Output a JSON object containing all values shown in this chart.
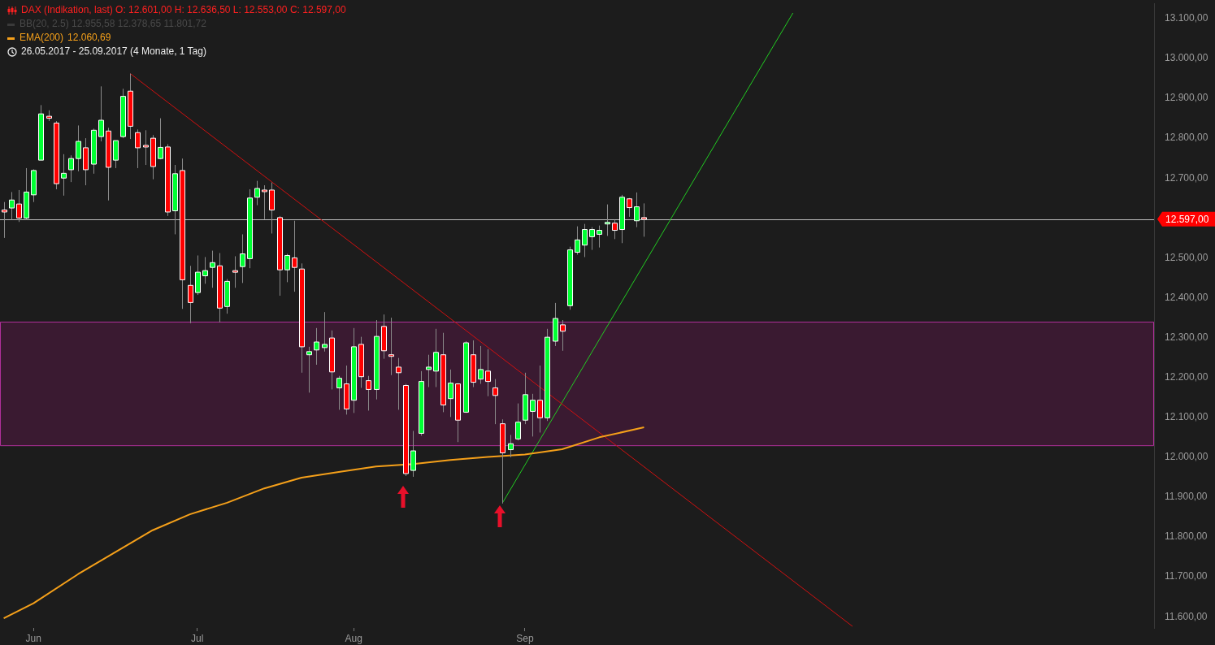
{
  "chart_data": {
    "type": "candlestick",
    "title": "DAX (Indikation, last)  O: 12.601,00  H: 12.636,50  L: 12.553,00  C: 12.597,00",
    "subtitle": "26.05.2017 - 25.09.2017   (4 Monate, 1 Tag)",
    "annotations": [
      "BB(20, 2.5)  12.955,58  12.378,65  11.801,72",
      "12.060,69"
    ],
    "categories": [
      null,
      null,
      null,
      null,
      "Jun",
      null,
      null,
      null,
      null,
      null,
      null,
      null,
      null,
      null,
      null,
      null,
      null,
      null,
      null,
      null,
      null,
      null,
      null,
      null,
      null,
      null,
      "Jul",
      null,
      null,
      null,
      null,
      null,
      null,
      null,
      null,
      null,
      null,
      null,
      null,
      null,
      null,
      null,
      null,
      null,
      null,
      null,
      null,
      "Aug",
      null,
      null,
      null,
      null,
      null,
      null,
      null,
      null,
      null,
      null,
      null,
      null,
      null,
      null,
      null,
      null,
      null,
      null,
      null,
      null,
      null,
      null,
      "Sep",
      null,
      null,
      null,
      null,
      null,
      null,
      null,
      null,
      null,
      null,
      null,
      null,
      null,
      null,
      null,
      null,
      null,
      null,
      null,
      null,
      null,
      null,
      null,
      null,
      null,
      null,
      null,
      null,
      null,
      null,
      null,
      null,
      null,
      null,
      null,
      null,
      null,
      null,
      null,
      null,
      null,
      null,
      null,
      null,
      null,
      null,
      null,
      null,
      null,
      null,
      null,
      null,
      null,
      null,
      null,
      null,
      null,
      null,
      null,
      null,
      null,
      null,
      null,
      null,
      null,
      null,
      null,
      null,
      null,
      null,
      null,
      null,
      null,
      null,
      null,
      null,
      null,
      null,
      null,
      null,
      null,
      null,
      null,
      null
    ],
    "ohlc": [
      [
        12620,
        12640,
        12550,
        12615
      ],
      [
        12625,
        12665,
        12595,
        12645
      ],
      [
        12635,
        12670,
        12590,
        12600
      ],
      [
        12600,
        12725,
        12595,
        12665
      ],
      [
        12658,
        12722,
        12640,
        12719
      ],
      [
        12745,
        12883,
        12745,
        12861
      ],
      [
        12855,
        12870,
        12843,
        12850
      ],
      [
        12838,
        12843,
        12672,
        12686
      ],
      [
        12700,
        12760,
        12656,
        12712
      ],
      [
        12721,
        12757,
        12690,
        12749
      ],
      [
        12749,
        12832,
        12717,
        12792
      ],
      [
        12776,
        12800,
        12682,
        12721
      ],
      [
        12735,
        12824,
        12711,
        12820
      ],
      [
        12804,
        12930,
        12792,
        12845
      ],
      [
        12818,
        12826,
        12644,
        12727
      ],
      [
        12745,
        12794,
        12725,
        12794
      ],
      [
        12804,
        12924,
        12800,
        12905
      ],
      [
        12918,
        12962,
        12798,
        12830
      ],
      [
        12814,
        12822,
        12725,
        12776
      ],
      [
        12782,
        12820,
        12733,
        12780
      ],
      [
        12800,
        12808,
        12697,
        12729
      ],
      [
        12749,
        12850,
        12747,
        12777
      ],
      [
        12778,
        12785,
        12605,
        12615
      ],
      [
        12618,
        12733,
        12559,
        12711
      ],
      [
        12719,
        12749,
        12372,
        12445
      ],
      [
        12431,
        12480,
        12336,
        12388
      ],
      [
        12413,
        12506,
        12407,
        12464
      ],
      [
        12455,
        12502,
        12435,
        12468
      ],
      [
        12476,
        12518,
        12425,
        12488
      ],
      [
        12480,
        12512,
        12338,
        12374
      ],
      [
        12378,
        12447,
        12360,
        12441
      ],
      [
        12468,
        12504,
        12425,
        12464
      ],
      [
        12478,
        12559,
        12437,
        12510
      ],
      [
        12498,
        12672,
        12474,
        12650
      ],
      [
        12652,
        12693,
        12632,
        12674
      ],
      [
        12670,
        12682,
        12597,
        12668
      ],
      [
        12670,
        12689,
        12561,
        12620
      ],
      [
        12601,
        12605,
        12405,
        12470
      ],
      [
        12470,
        12510,
        12439,
        12506
      ],
      [
        12500,
        12593,
        12415,
        12476
      ],
      [
        12472,
        12486,
        12212,
        12277
      ],
      [
        12257,
        12277,
        12162,
        12265
      ],
      [
        12269,
        12324,
        12232,
        12289
      ],
      [
        12275,
        12364,
        12265,
        12283
      ],
      [
        12299,
        12318,
        12170,
        12214
      ],
      [
        12174,
        12204,
        12119,
        12198
      ],
      [
        12184,
        12230,
        12107,
        12121
      ],
      [
        12143,
        12324,
        12111,
        12277
      ],
      [
        12283,
        12302,
        12174,
        12202
      ],
      [
        12192,
        12204,
        12117,
        12170
      ],
      [
        12170,
        12344,
        12145,
        12303
      ],
      [
        12328,
        12358,
        12247,
        12267
      ],
      [
        12257,
        12350,
        12206,
        12255
      ],
      [
        12226,
        12249,
        12119,
        12212
      ],
      [
        12180,
        12184,
        11953,
        11959
      ],
      [
        11967,
        12066,
        11951,
        12016
      ],
      [
        12060,
        12216,
        12054,
        12190
      ],
      [
        12220,
        12257,
        12176,
        12226
      ],
      [
        12216,
        12322,
        12176,
        12263
      ],
      [
        12257,
        12312,
        12113,
        12131
      ],
      [
        12147,
        12220,
        12101,
        12186
      ],
      [
        12184,
        12186,
        12038,
        12093
      ],
      [
        12113,
        12291,
        12111,
        12287
      ],
      [
        12257,
        12293,
        12176,
        12188
      ],
      [
        12196,
        12279,
        12184,
        12220
      ],
      [
        12216,
        12271,
        12153,
        12190
      ],
      [
        12174,
        12196,
        12083,
        12155
      ],
      [
        12084,
        12095,
        11884,
        12011
      ],
      [
        12019,
        12056,
        12000,
        12034
      ],
      [
        12046,
        12135,
        12042,
        12088
      ],
      [
        12093,
        12212,
        12083,
        12157
      ],
      [
        12115,
        12159,
        12052,
        12143
      ],
      [
        12143,
        12230,
        12062,
        12099
      ],
      [
        12099,
        12322,
        12091,
        12301
      ],
      [
        12291,
        12387,
        12279,
        12348
      ],
      [
        12332,
        12344,
        12267,
        12316
      ],
      [
        12380,
        12528,
        12370,
        12520
      ],
      [
        12514,
        12579,
        12508,
        12545
      ],
      [
        12532,
        12585,
        12502,
        12571
      ],
      [
        12553,
        12577,
        12520,
        12571
      ],
      [
        12559,
        12581,
        12526,
        12569
      ],
      [
        12587,
        12634,
        12555,
        12589
      ],
      [
        12587,
        12595,
        12547,
        12569
      ],
      [
        12571,
        12658,
        12537,
        12652
      ],
      [
        12648,
        12650,
        12603,
        12626
      ],
      [
        12593,
        12664,
        12577,
        12628
      ],
      [
        12601,
        12636.5,
        12553,
        12597
      ],
      null,
      null,
      null,
      null,
      null,
      null,
      null,
      null,
      null,
      null,
      null,
      null,
      null,
      null,
      null,
      null,
      null,
      null,
      null,
      null,
      null,
      null,
      null,
      null,
      null,
      null,
      null,
      null,
      null,
      null,
      null,
      null,
      null,
      null,
      null,
      null,
      null,
      null,
      null,
      null,
      null,
      null,
      null,
      null,
      null,
      null,
      null,
      null,
      null,
      null,
      null,
      null,
      null,
      null,
      null,
      null,
      null,
      null,
      null,
      null,
      null,
      null,
      null,
      null,
      null,
      null,
      null,
      null
    ],
    "series": [
      {
        "name": "EMA(200)",
        "type": "line",
        "color": "#f5a01a",
        "values": [
          11596,
          null,
          null,
          null,
          11634,
          null,
          null,
          null,
          null,
          null,
          11707,
          null,
          null,
          null,
          null,
          11762,
          null,
          null,
          null,
          null,
          11817,
          null,
          null,
          null,
          null,
          11857,
          null,
          null,
          null,
          null,
          11886,
          null,
          null,
          null,
          null,
          11922,
          null,
          null,
          null,
          null,
          11949,
          null,
          null,
          null,
          null,
          11963,
          null,
          null,
          null,
          null,
          11977,
          null,
          null,
          null,
          null,
          11983,
          null,
          null,
          null,
          null,
          11993,
          null,
          null,
          null,
          null,
          12001,
          null,
          null,
          null,
          null,
          12007,
          null,
          null,
          null,
          null,
          12020,
          null,
          null,
          null,
          null,
          12050,
          null,
          null,
          null,
          null,
          null,
          12075,
          null,
          null,
          null,
          null,
          null,
          null,
          null,
          null,
          null,
          null,
          null,
          null,
          null,
          null,
          null,
          null,
          null,
          null,
          null,
          null,
          null,
          null,
          null,
          null,
          null,
          null,
          null,
          null,
          null,
          null,
          null,
          null,
          null,
          null,
          null,
          null,
          null,
          null,
          null,
          null,
          null,
          null,
          null,
          null,
          null,
          null,
          null,
          null,
          null,
          null,
          null,
          null,
          null,
          null,
          null,
          null,
          null,
          null,
          null,
          null,
          null,
          null,
          null,
          null,
          null,
          null,
          null,
          null
        ]
      },
      {
        "type": "line",
        "color": "#d01010",
        "values": [
          null,
          null,
          null,
          null,
          null,
          null,
          null,
          null,
          null,
          null,
          null,
          null,
          null,
          null,
          null,
          null,
          null,
          12962,
          null,
          null,
          null,
          null,
          null,
          null,
          null,
          null,
          null,
          null,
          null,
          null,
          null,
          null,
          null,
          null,
          null,
          null,
          null,
          null,
          null,
          null,
          null,
          null,
          null,
          null,
          null,
          null,
          null,
          null,
          null,
          null,
          null,
          null,
          null,
          null,
          null,
          null,
          null,
          null,
          null,
          null,
          null,
          null,
          null,
          null,
          null,
          null,
          null,
          null,
          null,
          null,
          null,
          null,
          null,
          null,
          null,
          null,
          null,
          null,
          null,
          null,
          null,
          null,
          null,
          null,
          null,
          null,
          null,
          null,
          null,
          null,
          null,
          null,
          null,
          null,
          null,
          null,
          null,
          null,
          null,
          null,
          null,
          null,
          null,
          null,
          null,
          null,
          null,
          null,
          null,
          null,
          null,
          null,
          null,
          null,
          11576,
          null,
          null,
          null,
          null,
          null,
          null,
          null,
          null,
          null,
          null,
          null,
          null,
          null,
          null,
          null,
          null,
          null,
          null,
          null,
          null,
          null,
          null,
          null,
          null,
          null,
          null,
          null,
          null,
          null,
          null,
          null,
          null,
          null,
          null,
          null,
          null,
          null,
          null,
          null,
          null
        ]
      },
      {
        "type": "line",
        "color": "#22cc22",
        "values": [
          null,
          null,
          null,
          null,
          null,
          null,
          null,
          null,
          null,
          null,
          null,
          null,
          null,
          null,
          null,
          null,
          null,
          null,
          null,
          null,
          null,
          null,
          null,
          null,
          null,
          null,
          null,
          null,
          null,
          null,
          null,
          null,
          null,
          null,
          null,
          null,
          null,
          null,
          null,
          null,
          null,
          null,
          null,
          null,
          null,
          null,
          null,
          null,
          null,
          null,
          null,
          null,
          null,
          null,
          null,
          null,
          null,
          null,
          null,
          null,
          null,
          null,
          null,
          null,
          null,
          null,
          null,
          11886,
          null,
          null,
          null,
          null,
          null,
          null,
          null,
          null,
          null,
          null,
          null,
          null,
          null,
          null,
          null,
          null,
          null,
          null,
          null,
          null,
          null,
          null,
          null,
          null,
          null,
          null,
          null,
          null,
          null,
          null,
          null,
          null,
          null,
          null,
          null,
          null,
          null,
          null,
          13114,
          null,
          null,
          null,
          null,
          null,
          null,
          null,
          null,
          null,
          null,
          null,
          null,
          null,
          null,
          null,
          null,
          null,
          null,
          null,
          null,
          null,
          null,
          null,
          null,
          null,
          null,
          null,
          null,
          null,
          null,
          null,
          null,
          null,
          null,
          null,
          null,
          null,
          null,
          null,
          null,
          null,
          null,
          null,
          null,
          null,
          null,
          null,
          null
        ]
      }
    ],
    "ylim": [
      11572,
      13138
    ],
    "yticks": [
      {
        "value": 11600,
        "label": "11.600,00"
      },
      {
        "value": 11700,
        "label": "11.700,00"
      },
      {
        "value": 11800,
        "label": "11.800,00"
      },
      {
        "value": 11900,
        "label": "11.900,00"
      },
      {
        "value": 12000,
        "label": "12.000,00"
      },
      {
        "value": 12100,
        "label": "12.100,00"
      },
      {
        "value": 12200,
        "label": "12.200,00"
      },
      {
        "value": 12300,
        "label": "12.300,00"
      },
      {
        "value": 12400,
        "label": "12.400,00"
      },
      {
        "value": 12500,
        "label": "12.500,00"
      },
      {
        "value": 12700,
        "label": "12.700,00"
      },
      {
        "value": 12800,
        "label": "12.800,00"
      },
      {
        "value": 12900,
        "label": "12.900,00"
      },
      {
        "value": 13000,
        "label": "13.000,00"
      },
      {
        "value": 13100,
        "label": "13.100,00"
      }
    ],
    "ref_lines": [
      {
        "axis": "y",
        "value": 12597,
        "label": "12.597,00",
        "color": "#bdbdbd"
      }
    ],
    "bands": [
      {
        "axis": "y",
        "from": 12030,
        "to": 12340,
        "color": "#3a1a31"
      }
    ],
    "grid": false,
    "legend": "top left"
  }
}
